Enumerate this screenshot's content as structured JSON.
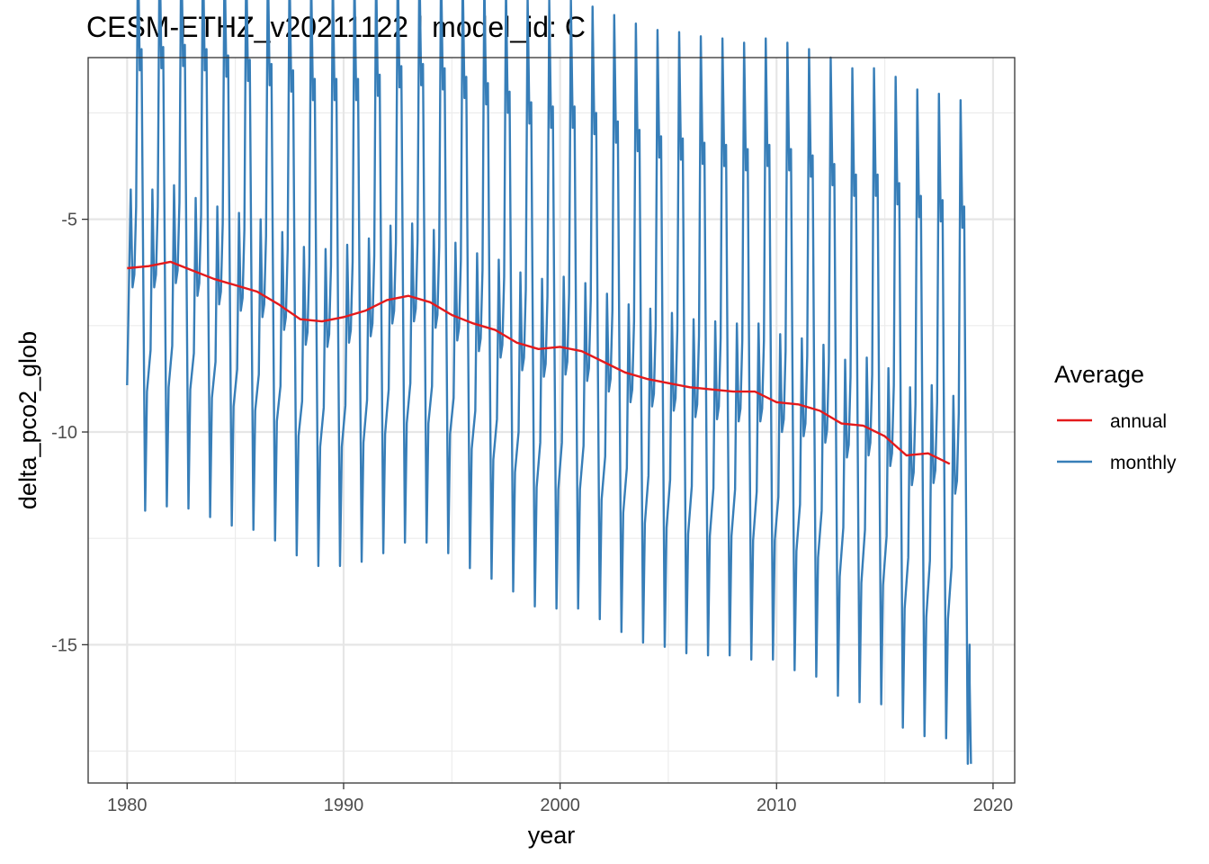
{
  "chart_data": {
    "type": "line",
    "title": "CESM-ETHZ_v20211122 | model_id: C",
    "xlabel": "year",
    "ylabel": "delta_pco2_glob",
    "xlim": [
      1978.2,
      2021.0
    ],
    "ylim": [
      -18.25,
      -1.2
    ],
    "x_ticks": [
      1980,
      1990,
      2000,
      2010,
      2020
    ],
    "x_tick_labels": [
      "1980",
      "1990",
      "2000",
      "2010",
      "2020"
    ],
    "y_ticks": [
      -5,
      -10,
      -15
    ],
    "y_tick_labels": [
      "-5",
      "-10",
      "-15"
    ],
    "legend": {
      "title": "Average",
      "position": "right",
      "entries": [
        {
          "name": "annual",
          "color": "#e41a1c"
        },
        {
          "name": "monthly",
          "color": "#377eb8"
        }
      ]
    },
    "series": [
      {
        "name": "annual",
        "color": "#e41a1c",
        "x_start": 1980,
        "step": 1,
        "values": [
          -6.15,
          -6.1,
          -6.0,
          -6.2,
          -6.4,
          -6.55,
          -6.7,
          -7.0,
          -7.35,
          -7.4,
          -7.3,
          -7.15,
          -6.9,
          -6.8,
          -6.95,
          -7.25,
          -7.45,
          -7.6,
          -7.9,
          -8.05,
          -8.0,
          -8.1,
          -8.35,
          -8.6,
          -8.75,
          -8.85,
          -8.95,
          -9.0,
          -9.05,
          -9.05,
          -9.3,
          -9.35,
          -9.5,
          -9.8,
          -9.85,
          -10.1,
          -10.55,
          -10.5,
          -10.75
        ]
      },
      {
        "name": "monthly",
        "color": "#377eb8",
        "note": "monthly seasonal cycle; per-year peaks (late-year maximum), secondary peak, and annual minimum",
        "x_start": 1980,
        "years_peak": [
          -1.5,
          -1.45,
          -1.4,
          -1.5,
          -1.65,
          -1.75,
          -1.85,
          -2.0,
          -2.2,
          -2.2,
          -2.2,
          -2.1,
          -1.9,
          -1.85,
          -1.95,
          -2.15,
          -2.3,
          -2.5,
          -2.75,
          -2.85,
          -2.85,
          -3.0,
          -3.2,
          -3.4,
          -3.55,
          -3.6,
          -3.7,
          -3.75,
          -3.85,
          -3.75,
          -3.85,
          -4.0,
          -4.2,
          -4.45,
          -4.45,
          -4.65,
          -4.95,
          -5.05,
          -5.2
        ],
        "years_secondary": [
          -4.3,
          -4.3,
          -4.2,
          -4.5,
          -4.7,
          -4.85,
          -5.0,
          -5.3,
          -5.65,
          -5.7,
          -5.6,
          -5.45,
          -5.15,
          -5.1,
          -5.25,
          -5.55,
          -5.8,
          -5.95,
          -6.25,
          -6.4,
          -6.35,
          -6.5,
          -6.75,
          -7.0,
          -7.1,
          -7.2,
          -7.35,
          -7.4,
          -7.45,
          -7.45,
          -7.7,
          -7.8,
          -7.95,
          -8.3,
          -8.25,
          -8.5,
          -8.95,
          -8.9,
          -9.15
        ],
        "years_min": [
          -11.85,
          -11.75,
          -11.8,
          -12.0,
          -12.2,
          -12.3,
          -12.55,
          -12.9,
          -13.15,
          -13.15,
          -13.05,
          -12.85,
          -12.6,
          -12.6,
          -12.85,
          -13.2,
          -13.45,
          -13.75,
          -14.1,
          -14.15,
          -14.15,
          -14.4,
          -14.7,
          -14.95,
          -15.05,
          -15.2,
          -15.25,
          -15.25,
          -15.35,
          -15.35,
          -15.6,
          -15.75,
          -16.2,
          -16.35,
          -16.4,
          -16.95,
          -17.15,
          -17.2,
          -17.8
        ],
        "values_start": -8.9
      }
    ]
  }
}
